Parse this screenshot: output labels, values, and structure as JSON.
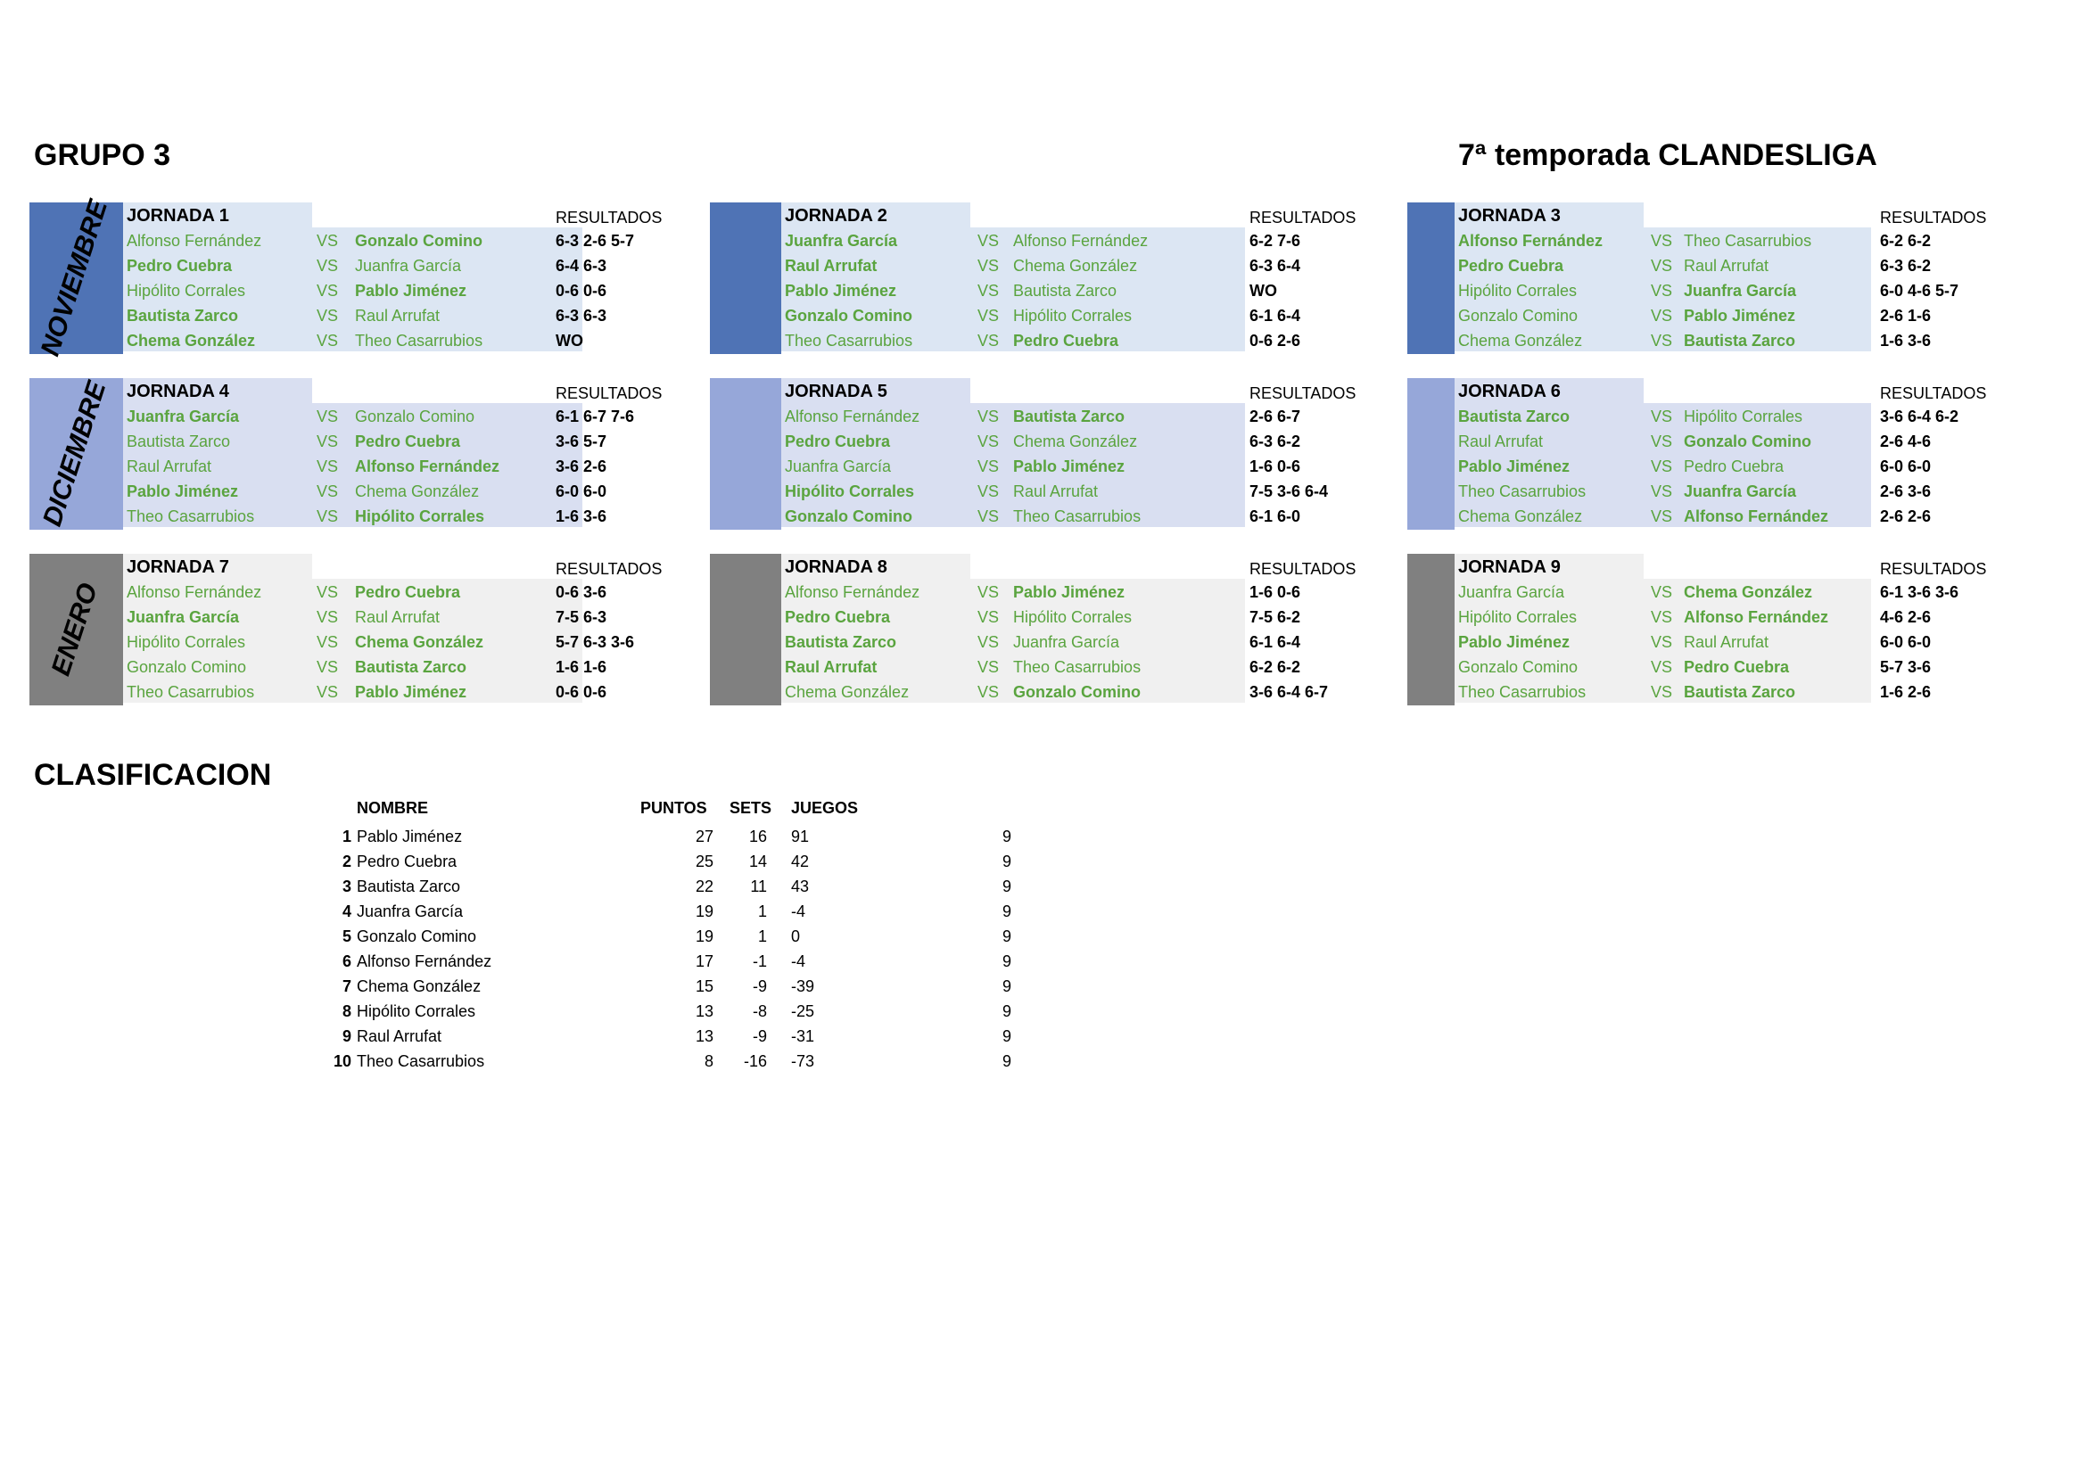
{
  "title_left": "GRUPO 3",
  "title_right": "7ª temporada CLANDESLIGA",
  "results_label": "RESULTADOS",
  "vs_label": "VS",
  "months": [
    "NOVIEMBRE",
    "DICIEMBRE",
    "ENERO"
  ],
  "month_colors": [
    "#4f73b5",
    "#96a7d9",
    "#808080"
  ],
  "row_colors": [
    "#dce6f3",
    "#d9dff1",
    "#f0f0f0"
  ],
  "jornadas": [
    {
      "title": "JORNADA 1",
      "matches": [
        {
          "home": "Alfonso Fernández",
          "away": "Gonzalo Comino",
          "winner": "away",
          "score": "6-3 2-6 5-7"
        },
        {
          "home": "Pedro Cuebra",
          "away": "Juanfra García",
          "winner": "home",
          "score": "6-4 6-3"
        },
        {
          "home": "Hipólito Corrales",
          "away": "Pablo Jiménez",
          "winner": "away",
          "score": "0-6 0-6"
        },
        {
          "home": "Bautista Zarco",
          "away": "Raul Arrufat",
          "winner": "home",
          "score": "6-3 6-3"
        },
        {
          "home": "Chema González",
          "away": "Theo Casarrubios",
          "winner": "home",
          "score": "WO"
        }
      ]
    },
    {
      "title": "JORNADA 2",
      "matches": [
        {
          "home": "Juanfra García",
          "away": "Alfonso Fernández",
          "winner": "home",
          "score": "6-2 7-6"
        },
        {
          "home": "Raul Arrufat",
          "away": "Chema González",
          "winner": "home",
          "score": "6-3 6-4"
        },
        {
          "home": "Pablo Jiménez",
          "away": "Bautista Zarco",
          "winner": "home",
          "score": "WO"
        },
        {
          "home": "Gonzalo Comino",
          "away": "Hipólito Corrales",
          "winner": "home",
          "score": "6-1 6-4"
        },
        {
          "home": "Theo Casarrubios",
          "away": "Pedro Cuebra",
          "winner": "away",
          "score": "0-6 2-6"
        }
      ]
    },
    {
      "title": "JORNADA 3",
      "matches": [
        {
          "home": "Alfonso Fernández",
          "away": "Theo Casarrubios",
          "winner": "home",
          "score": "6-2 6-2"
        },
        {
          "home": "Pedro Cuebra",
          "away": "Raul Arrufat",
          "winner": "home",
          "score": "6-3 6-2"
        },
        {
          "home": "Hipólito Corrales",
          "away": "Juanfra García",
          "winner": "away",
          "score": "6-0 4-6 5-7"
        },
        {
          "home": "Gonzalo Comino",
          "away": "Pablo Jiménez",
          "winner": "away",
          "score": "2-6 1-6"
        },
        {
          "home": "Chema González",
          "away": "Bautista Zarco",
          "winner": "away",
          "score": "1-6 3-6"
        }
      ]
    },
    {
      "title": "JORNADA 4",
      "matches": [
        {
          "home": "Juanfra García",
          "away": "Gonzalo Comino",
          "winner": "home",
          "score": "6-1 6-7 7-6"
        },
        {
          "home": "Bautista Zarco",
          "away": "Pedro Cuebra",
          "winner": "away",
          "score": "3-6 5-7"
        },
        {
          "home": "Raul Arrufat",
          "away": "Alfonso Fernández",
          "winner": "away",
          "score": "3-6 2-6"
        },
        {
          "home": "Pablo Jiménez",
          "away": "Chema González",
          "winner": "home",
          "score": "6-0 6-0"
        },
        {
          "home": "Theo Casarrubios",
          "away": "Hipólito Corrales",
          "winner": "away",
          "score": "1-6 3-6"
        }
      ]
    },
    {
      "title": "JORNADA 5",
      "matches": [
        {
          "home": "Alfonso Fernández",
          "away": "Bautista Zarco",
          "winner": "away",
          "score": "2-6 6-7"
        },
        {
          "home": "Pedro Cuebra",
          "away": "Chema González",
          "winner": "home",
          "score": "6-3 6-2"
        },
        {
          "home": "Juanfra García",
          "away": "Pablo Jiménez",
          "winner": "away",
          "score": "1-6 0-6"
        },
        {
          "home": "Hipólito Corrales",
          "away": "Raul Arrufat",
          "winner": "home",
          "score": "7-5 3-6 6-4"
        },
        {
          "home": "Gonzalo Comino",
          "away": "Theo Casarrubios",
          "winner": "home",
          "score": "6-1 6-0"
        }
      ]
    },
    {
      "title": "JORNADA 6",
      "matches": [
        {
          "home": "Bautista Zarco",
          "away": "Hipólito Corrales",
          "winner": "home",
          "score": "3-6 6-4 6-2"
        },
        {
          "home": "Raul Arrufat",
          "away": "Gonzalo Comino",
          "winner": "away",
          "score": "2-6 4-6"
        },
        {
          "home": "Pablo Jiménez",
          "away": "Pedro Cuebra",
          "winner": "home",
          "score": "6-0 6-0"
        },
        {
          "home": "Theo Casarrubios",
          "away": "Juanfra García",
          "winner": "away",
          "score": "2-6 3-6"
        },
        {
          "home": "Chema González",
          "away": "Alfonso Fernández",
          "winner": "away",
          "score": "2-6 2-6"
        }
      ]
    },
    {
      "title": "JORNADA 7",
      "matches": [
        {
          "home": "Alfonso Fernández",
          "away": "Pedro Cuebra",
          "winner": "away",
          "score": "0-6 3-6"
        },
        {
          "home": "Juanfra García",
          "away": "Raul Arrufat",
          "winner": "home",
          "score": "7-5 6-3"
        },
        {
          "home": "Hipólito Corrales",
          "away": "Chema González",
          "winner": "away",
          "score": "5-7 6-3 3-6"
        },
        {
          "home": "Gonzalo Comino",
          "away": "Bautista Zarco",
          "winner": "away",
          "score": "1-6 1-6"
        },
        {
          "home": "Theo Casarrubios",
          "away": "Pablo Jiménez",
          "winner": "away",
          "score": "0-6 0-6"
        }
      ]
    },
    {
      "title": "JORNADA 8",
      "matches": [
        {
          "home": "Alfonso Fernández",
          "away": "Pablo Jiménez",
          "winner": "away",
          "score": "1-6 0-6"
        },
        {
          "home": "Pedro Cuebra",
          "away": "Hipólito Corrales",
          "winner": "home",
          "score": "7-5 6-2"
        },
        {
          "home": "Bautista Zarco",
          "away": "Juanfra García",
          "winner": "home",
          "score": "6-1 6-4"
        },
        {
          "home": "Raul Arrufat",
          "away": "Theo Casarrubios",
          "winner": "home",
          "score": "6-2 6-2"
        },
        {
          "home": "Chema González",
          "away": "Gonzalo Comino",
          "winner": "away",
          "score": "3-6 6-4 6-7"
        }
      ]
    },
    {
      "title": "JORNADA 9",
      "matches": [
        {
          "home": "Juanfra García",
          "away": "Chema González",
          "winner": "away",
          "score": "6-1 3-6 3-6"
        },
        {
          "home": "Hipólito Corrales",
          "away": "Alfonso Fernández",
          "winner": "away",
          "score": "4-6 2-6"
        },
        {
          "home": "Pablo Jiménez",
          "away": "Raul Arrufat",
          "winner": "home",
          "score": "6-0 6-0"
        },
        {
          "home": "Gonzalo Comino",
          "away": "Pedro Cuebra",
          "winner": "away",
          "score": "5-7 3-6"
        },
        {
          "home": "Theo Casarrubios",
          "away": "Bautista Zarco",
          "winner": "away",
          "score": "1-6 2-6"
        }
      ]
    }
  ],
  "clasificacion": {
    "title": "CLASIFICACION",
    "headers": {
      "name": "NOMBRE",
      "points": "PUNTOS",
      "sets": "SETS",
      "games": "JUEGOS"
    },
    "rows": [
      {
        "pos": "1",
        "name": "Pablo Jiménez",
        "points": "27",
        "sets": "16",
        "games": "91",
        "played": "9"
      },
      {
        "pos": "2",
        "name": "Pedro Cuebra",
        "points": "25",
        "sets": "14",
        "games": "42",
        "played": "9"
      },
      {
        "pos": "3",
        "name": "Bautista Zarco",
        "points": "22",
        "sets": "11",
        "games": "43",
        "played": "9"
      },
      {
        "pos": "4",
        "name": "Juanfra García",
        "points": "19",
        "sets": "1",
        "games": "-4",
        "played": "9"
      },
      {
        "pos": "5",
        "name": "Gonzalo Comino",
        "points": "19",
        "sets": "1",
        "games": "0",
        "played": "9"
      },
      {
        "pos": "6",
        "name": "Alfonso Fernández",
        "points": "17",
        "sets": "-1",
        "games": "-4",
        "played": "9"
      },
      {
        "pos": "7",
        "name": "Chema González",
        "points": "15",
        "sets": "-9",
        "games": "-39",
        "played": "9"
      },
      {
        "pos": "8",
        "name": "Hipólito Corrales",
        "points": "13",
        "sets": "-8",
        "games": "-25",
        "played": "9"
      },
      {
        "pos": "9",
        "name": "Raul Arrufat",
        "points": "13",
        "sets": "-9",
        "games": "-31",
        "played": "9"
      },
      {
        "pos": "10",
        "name": "Theo Casarrubios",
        "points": "8",
        "sets": "-16",
        "games": "-73",
        "played": "9"
      }
    ]
  }
}
